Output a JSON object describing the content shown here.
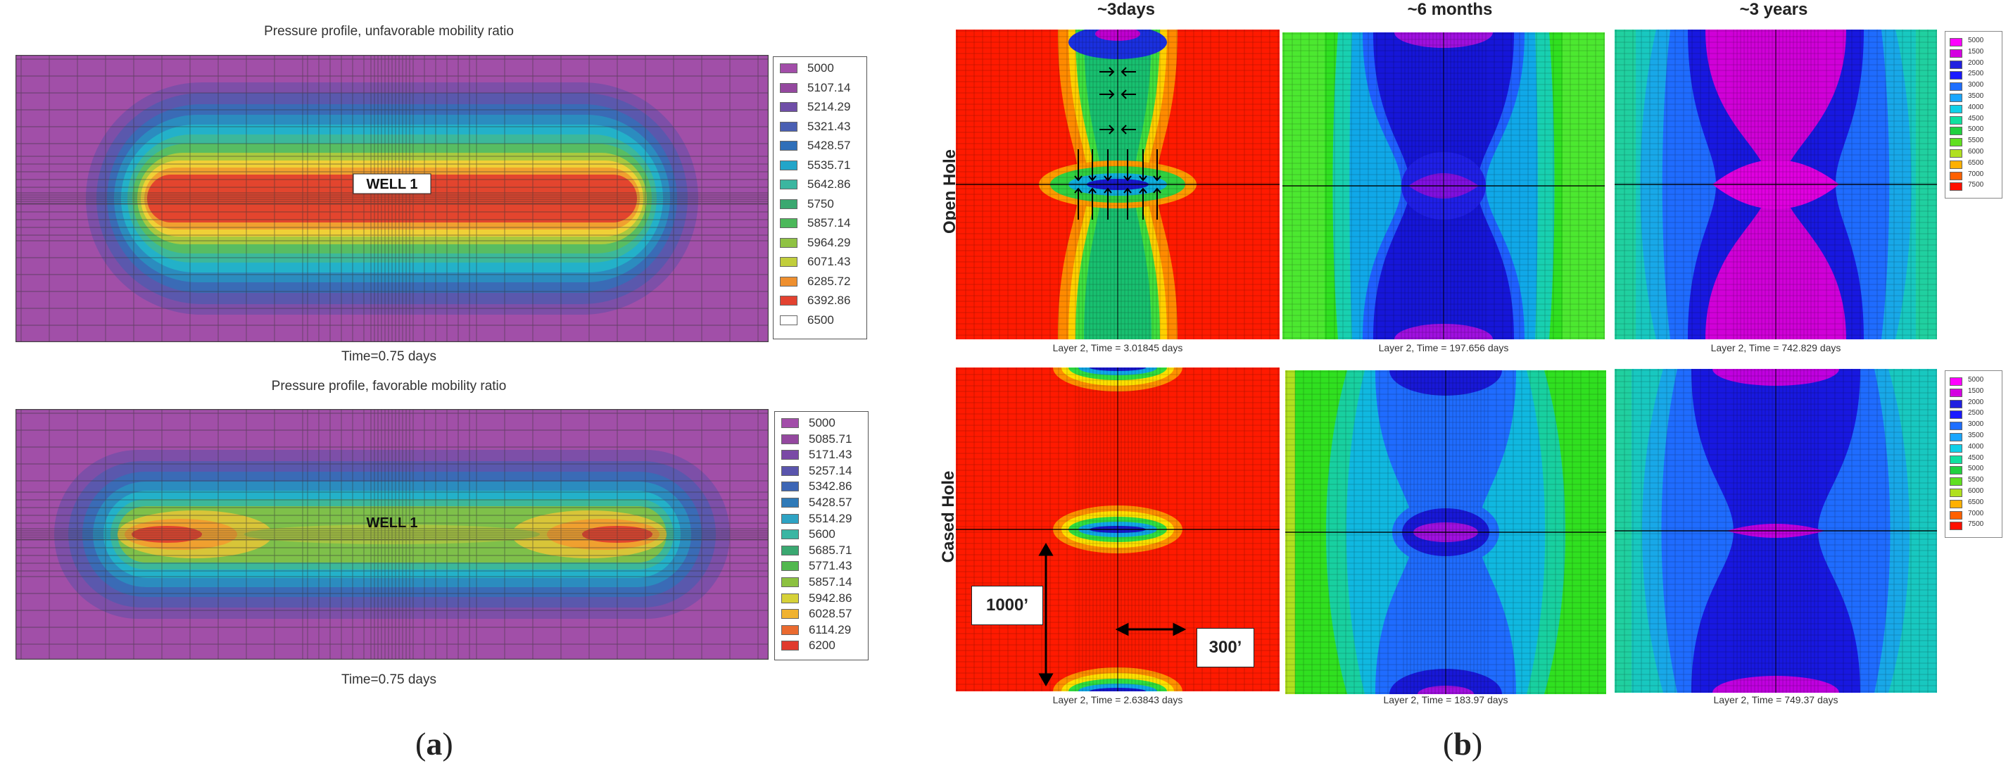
{
  "panel_a": {
    "letter": "a",
    "plots": [
      {
        "title": "Pressure profile, unfavorable mobility ratio",
        "time_label": "Time=0.75 days",
        "well_label": "WELL 1",
        "legend": [
          "5000",
          "5107.14",
          "5214.29",
          "5321.43",
          "5428.57",
          "5535.71",
          "5642.86",
          "5750",
          "5857.14",
          "5964.29",
          "6071.43",
          "6285.72",
          "6392.86",
          "6500"
        ],
        "legend_colors": [
          "#a24da9",
          "#94489f",
          "#6f4ea7",
          "#4a5fb3",
          "#2f6fb9",
          "#22a5c9",
          "#3bb6a0",
          "#3aa870",
          "#4bb85a",
          "#8fc243",
          "#c1ce3b",
          "#ee8f2f",
          "#e34230",
          "#ffffff"
        ]
      },
      {
        "title": "Pressure profile, favorable mobility ratio",
        "time_label": "Time=0.75 days",
        "well_label": "WELL 1",
        "legend": [
          "5000",
          "5085.71",
          "5171.43",
          "5257.14",
          "5342.86",
          "5428.57",
          "5514.29",
          "5600",
          "5685.71",
          "5771.43",
          "5857.14",
          "5942.86",
          "6028.57",
          "6114.29",
          "6200"
        ],
        "legend_colors": [
          "#a24da9",
          "#94489f",
          "#7a4aa6",
          "#5a55ad",
          "#3d66b5",
          "#2f7ab8",
          "#2ea3c4",
          "#3bb6a3",
          "#3aa871",
          "#52b84f",
          "#8cc140",
          "#d6d138",
          "#f0b230",
          "#ea6a2f",
          "#e03a2d"
        ]
      }
    ]
  },
  "panel_b": {
    "letter": "b",
    "columns": [
      "~3days",
      "~6 months",
      "~3 years"
    ],
    "rows": [
      "Open Hole",
      "Cased Hole"
    ],
    "captions": [
      [
        "Layer 2, Time = 3.01845 days",
        "Layer 2, Time = 197.656 days",
        "Layer 2, Time = 742.829 days"
      ],
      [
        "Layer 2, Time = 2.63843 days",
        "Layer 2, Time = 183.97 days",
        "Layer 2, Time = 749.37 days"
      ]
    ],
    "scale_vertical": "1000’",
    "scale_horizontal": "300’",
    "legend": [
      "5000",
      "1500",
      "2000",
      "2500",
      "3000",
      "3500",
      "4000",
      "4500",
      "5000",
      "5500",
      "6000",
      "6500",
      "7000",
      "7500"
    ],
    "legend_colors": [
      "#ff00ff",
      "#d400e0",
      "#2020e0",
      "#1a1aff",
      "#1f6fff",
      "#1aa6ff",
      "#10d0e8",
      "#10e0a0",
      "#20d040",
      "#60e020",
      "#b0e020",
      "#ffb000",
      "#ff6000",
      "#ff1000"
    ]
  },
  "chart_data": [
    {
      "type": "heatmap",
      "title": "Pressure profile, unfavorable mobility ratio",
      "xlabel": "Time=0.75 days",
      "ylabel": "",
      "legend_values": [
        5000,
        5107.14,
        5214.29,
        5321.43,
        5428.57,
        5535.71,
        5642.86,
        5750,
        5857.14,
        5964.29,
        6071.43,
        6285.72,
        6392.86,
        6500
      ],
      "annotations": [
        "WELL 1"
      ]
    },
    {
      "type": "heatmap",
      "title": "Pressure profile, favorable mobility ratio",
      "xlabel": "Time=0.75 days",
      "ylabel": "",
      "legend_values": [
        5000,
        5085.71,
        5171.43,
        5257.14,
        5342.86,
        5428.57,
        5514.29,
        5600,
        5685.71,
        5771.43,
        5857.14,
        5942.86,
        6028.57,
        6114.29,
        6200
      ],
      "annotations": [
        "WELL 1"
      ]
    },
    {
      "type": "heatmap",
      "title": "Open Hole / Cased Hole pressure maps at ~3days, ~6 months, ~3 years",
      "series": [
        {
          "name": "Open Hole",
          "times_days": [
            3.01845,
            197.656,
            742.829
          ]
        },
        {
          "name": "Cased Hole",
          "times_days": [
            2.63843,
            183.97,
            749.37
          ]
        }
      ],
      "legend_values": [
        5000,
        1500,
        2000,
        2500,
        3000,
        3500,
        4000,
        4500,
        5000,
        5500,
        6000,
        6500,
        7000,
        7500
      ],
      "annotations": [
        "1000’",
        "300’"
      ]
    }
  ]
}
